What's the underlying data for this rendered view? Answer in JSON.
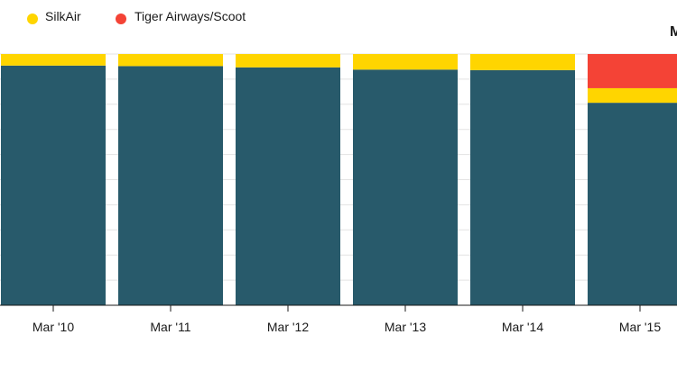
{
  "legend": {
    "items": [
      {
        "label": "SilkAir",
        "color": "#ffd500"
      },
      {
        "label": "Tiger Airways/Scoot",
        "color": "#f44336"
      }
    ]
  },
  "corner_label": "M",
  "chart_data": {
    "type": "bar",
    "stacked": true,
    "categories": [
      "Mar '10",
      "Mar '11",
      "Mar '12",
      "Mar '13",
      "Mar '14",
      "Mar '15"
    ],
    "series": [
      {
        "name": "",
        "color": "#285a6b",
        "values": [
          95.4,
          95.2,
          94.7,
          93.8,
          93.6,
          80.6
        ]
      },
      {
        "name": "SilkAir",
        "color": "#ffd500",
        "values": [
          4.6,
          4.8,
          5.3,
          6.2,
          6.4,
          5.8
        ]
      },
      {
        "name": "Tiger Airways/Scoot",
        "color": "#f44336",
        "values": [
          0,
          0,
          0,
          0,
          0,
          13.6
        ]
      }
    ],
    "ylim": [
      0,
      100
    ],
    "grid": true
  }
}
